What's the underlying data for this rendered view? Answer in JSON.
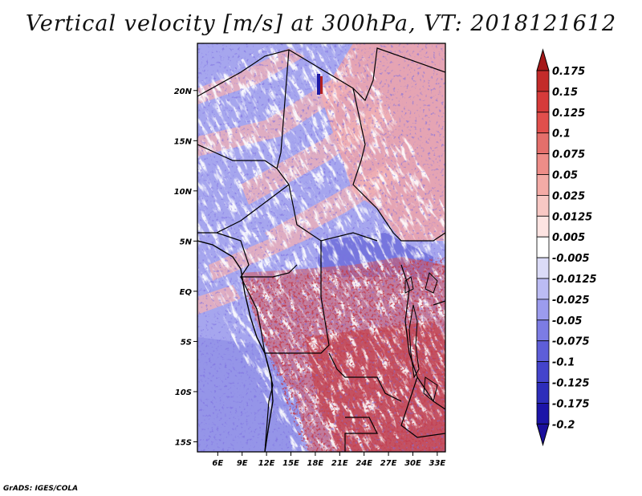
{
  "title": "Vertical velocity [m/s] at 300hPa, VT: 2018121612",
  "credit": "GrADS: IGES/COLA",
  "map": {
    "variable": "Vertical velocity",
    "units": "m/s",
    "level": "300hPa",
    "valid_time": "2018121612",
    "lon_range": [
      3.5,
      34.0
    ],
    "lat_range": [
      -16.0,
      24.7
    ],
    "lon_ticks": [
      {
        "value": 6,
        "label": "6E"
      },
      {
        "value": 9,
        "label": "9E"
      },
      {
        "value": 12,
        "label": "12E"
      },
      {
        "value": 15,
        "label": "15E"
      },
      {
        "value": 18,
        "label": "18E"
      },
      {
        "value": 21,
        "label": "21E"
      },
      {
        "value": 24,
        "label": "24E"
      },
      {
        "value": 27,
        "label": "27E"
      },
      {
        "value": 30,
        "label": "30E"
      },
      {
        "value": 33,
        "label": "33E"
      }
    ],
    "lat_ticks": [
      {
        "value": 20,
        "label": "20N"
      },
      {
        "value": 15,
        "label": "15N"
      },
      {
        "value": 10,
        "label": "10N"
      },
      {
        "value": 5,
        "label": "5N"
      },
      {
        "value": 0,
        "label": "EQ"
      },
      {
        "value": -5,
        "label": "5S"
      },
      {
        "value": -10,
        "label": "10S"
      },
      {
        "value": -15,
        "label": "15S"
      }
    ]
  },
  "colorbar": {
    "levels": [
      {
        "label": "0.175",
        "color": "#b2201e"
      },
      {
        "label": "0.15",
        "color": "#c32b2a"
      },
      {
        "label": "0.125",
        "color": "#d63b3a"
      },
      {
        "label": "0.1",
        "color": "#e14f4c"
      },
      {
        "label": "0.075",
        "color": "#e46f6b"
      },
      {
        "label": "0.05",
        "color": "#ee8d88"
      },
      {
        "label": "0.025",
        "color": "#f4aba6"
      },
      {
        "label": "0.0125",
        "color": "#f8c8c4"
      },
      {
        "label": "0.005",
        "color": "#fde4e2"
      },
      {
        "label": "-0.005",
        "color": "#ffffff"
      },
      {
        "label": "-0.0125",
        "color": "#dcdcf8"
      },
      {
        "label": "-0.025",
        "color": "#bcbcf4"
      },
      {
        "label": "-0.05",
        "color": "#9c9cee"
      },
      {
        "label": "-0.075",
        "color": "#7c7ce4"
      },
      {
        "label": "-0.1",
        "color": "#5e5ed8"
      },
      {
        "label": "-0.125",
        "color": "#4444cc"
      },
      {
        "label": "-0.175",
        "color": "#2d2dba"
      },
      {
        "label": "-0.2",
        "color": "#1c14a8"
      }
    ],
    "top_arrow_color": "#a51818",
    "bottom_arrow_color": "#1a0e9c"
  }
}
